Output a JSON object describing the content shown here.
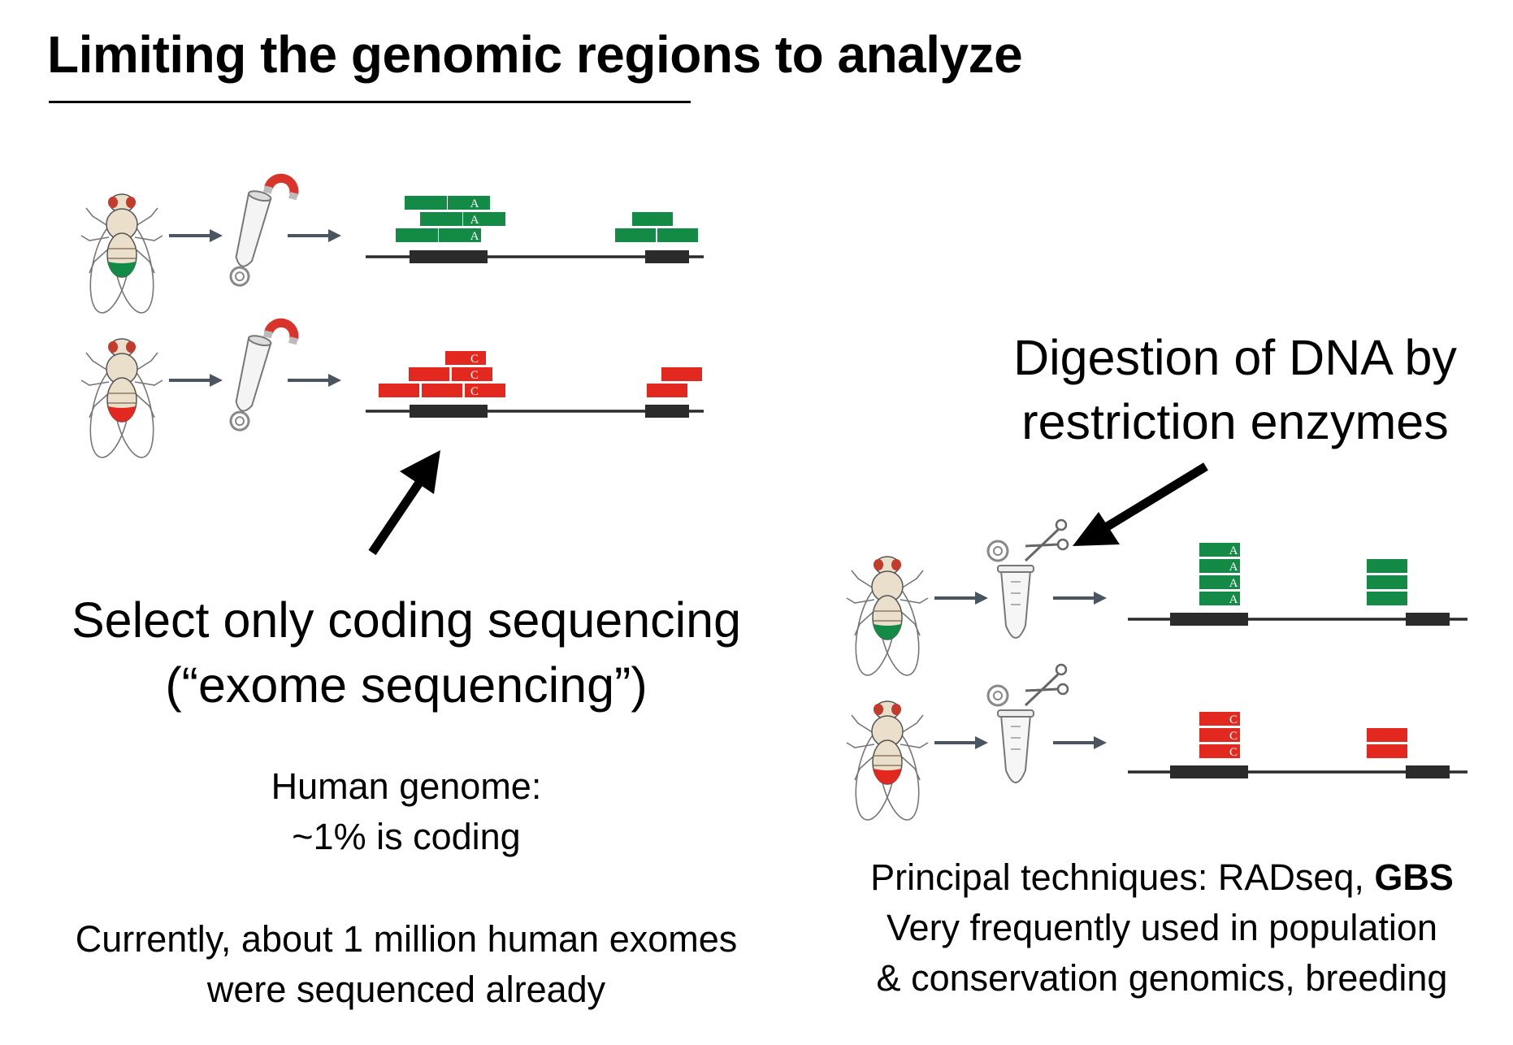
{
  "title": "Limiting the genomic regions to analyze",
  "exome": {
    "heading_line1": "Select only coding sequencing",
    "heading_line2": "(“exome sequencing”)",
    "genome_line1": "Human genome:",
    "genome_line2": "~1% is coding",
    "count_line1": "Currently, about 1 million human exomes",
    "count_line2": "were sequenced already"
  },
  "digestion": {
    "heading_line1": "Digestion of DNA by",
    "heading_line2": "restriction enzymes",
    "tech_line1_prefix": "Principal techniques: RADseq, ",
    "tech_line1_bold": "GBS",
    "tech_line2": "Very frequently used in population",
    "tech_line3": "& conservation genomics, breeding"
  },
  "read_labels": {
    "green_allele": "A",
    "red_allele": "C"
  },
  "colors": {
    "green_read": "#138a46",
    "red_read": "#e2281f",
    "dna_line": "#2b2b2b",
    "exon": "#2b2b2b",
    "flow_arrow": "#4a5560",
    "magnet": "#d9342b"
  },
  "icons": [
    "fly-icon",
    "tube-with-magnet-icon",
    "tube-with-scissors-icon",
    "arrow-icon"
  ]
}
